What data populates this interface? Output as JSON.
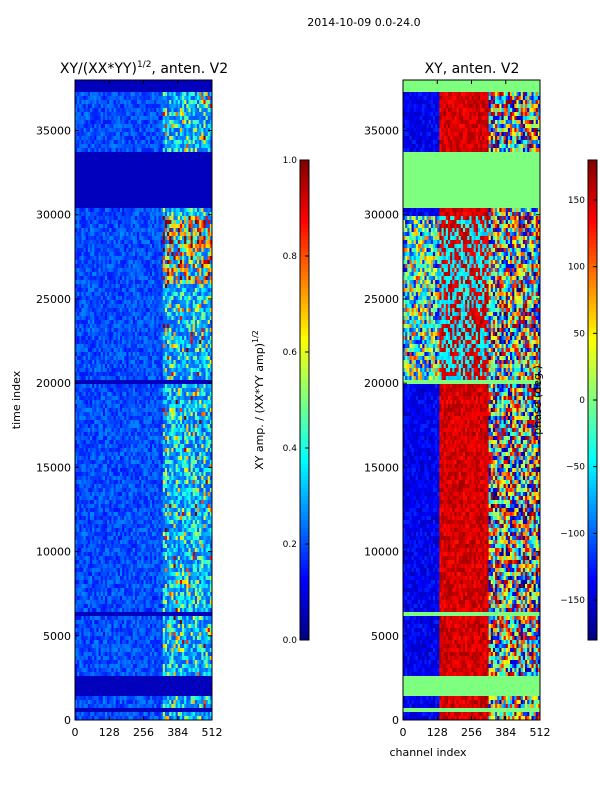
{
  "figure": {
    "suptitle": "2014-10-09 0.0-24.0"
  },
  "chart_data": [
    {
      "type": "heatmap",
      "title": "XY/(XX*YY)",
      "title_exponent": "1/2",
      "title_suffix": ", anten. V2",
      "xlabel": "",
      "ylabel": "time index",
      "xlim": [
        0,
        512
      ],
      "ylim": [
        0,
        38000
      ],
      "xticks": [
        0,
        128,
        256,
        384,
        512
      ],
      "yticks": [
        0,
        5000,
        10000,
        15000,
        20000,
        25000,
        30000,
        35000
      ],
      "grid": false,
      "bright_band_channels": [
        330,
        512
      ],
      "colorbar": {
        "label": "XY amp. / (XX*YY amp)",
        "label_exponent": "1/2",
        "range": [
          0.0,
          1.0
        ],
        "ticks": [
          "0.0",
          "0.2",
          "0.4",
          "0.6",
          "0.8",
          "1.0"
        ],
        "tick_values": [
          0.0,
          0.2,
          0.4,
          0.6,
          0.8,
          1.0
        ]
      }
    },
    {
      "type": "heatmap",
      "title": "XY, anten. V2",
      "xlabel": "channel index",
      "ylabel": "",
      "xlim": [
        0,
        512
      ],
      "ylim": [
        0,
        38000
      ],
      "xticks": [
        0,
        128,
        256,
        384,
        512
      ],
      "yticks": [
        0,
        5000,
        10000,
        15000,
        20000,
        25000,
        30000,
        35000
      ],
      "grid": false,
      "colorbar": {
        "label": "phase (deg.)",
        "range": [
          -180,
          180
        ],
        "ticks": [
          "150",
          "100",
          "50",
          "0",
          "−50",
          "−100",
          "−150"
        ],
        "tick_values": [
          150,
          100,
          50,
          0,
          -50,
          -100,
          -150
        ]
      }
    }
  ],
  "colors": {
    "jet_low": "#00007f",
    "jet_high": "#7f0000",
    "flag_green": "#7fff7f"
  }
}
